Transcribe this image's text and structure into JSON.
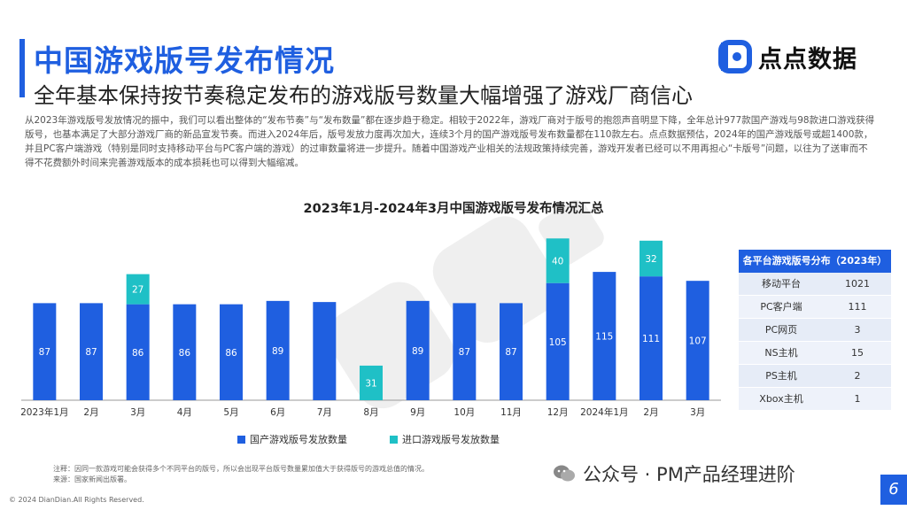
{
  "header": {
    "title": "中国游戏版号发布情况",
    "subtitle": "全年基本保持按节奏稳定发布的游戏版号数量大幅增强了游戏厂商信心"
  },
  "logo": {
    "text": "点点数据"
  },
  "intro_text": "从2023年游戏版号发放情况的振中，我们可以看出整体的“发布节奏”与“发布数量”都在逐步趋于稳定。相较于2022年，游戏厂商对于版号的抱怨声音明显下降，全年总计977款国产游戏与98款进口游戏获得版号，也基本满足了大部分游戏厂商的新品宣发节奏。而进入2024年后，版号发放力度再次加大，连续3个月的国产游戏版号发布数量都在110款左右。点点数据预估，2024年的国产游戏版号或超1400款，并且PC客户端游戏（特别是同时支持移动平台与PC客户端的游戏）的过审数量将进一步提升。随着中国游戏产业相关的法规政策持续完善，游戏开发者已经可以不用再担心“卡版号”问题，以往为了送审而不得不花费额外时间来完善游戏版本的成本损耗也可以得到大幅缩减。",
  "chart_data": {
    "type": "bar",
    "title": "2023年1月-2024年3月中国游戏版号发布情况汇总",
    "categories": [
      "2023年1月",
      "2月",
      "3月",
      "4月",
      "5月",
      "6月",
      "7月",
      "8月",
      "9月",
      "10月",
      "11月",
      "12月",
      "2024年1月",
      "2月",
      "3月"
    ],
    "series": [
      {
        "name": "国产游戏版号发放数量",
        "color": "#1f5fe0",
        "values": [
          87,
          87,
          86,
          86,
          86,
          89,
          88,
          null,
          89,
          87,
          87,
          105,
          115,
          111,
          107
        ],
        "labels": [
          "87",
          "87",
          "86",
          "86",
          "86",
          "89",
          "",
          "",
          "89",
          "87",
          "87",
          "105",
          "115",
          "111",
          "107"
        ]
      },
      {
        "name": "进口游戏版号发放数量",
        "color": "#1fc0c6",
        "values": [
          null,
          null,
          27,
          null,
          null,
          null,
          null,
          31,
          null,
          null,
          null,
          40,
          null,
          32,
          null
        ],
        "labels": [
          "",
          "",
          "27",
          "",
          "",
          "",
          "",
          "31",
          "",
          "",
          "",
          "40",
          "",
          "32",
          ""
        ]
      }
    ],
    "stacked": true,
    "ylim": [
      0,
      150
    ],
    "grid": false,
    "legend": "bottom"
  },
  "side_table": {
    "header": "各平台游戏版号分布（2023年）",
    "rows": [
      {
        "platform": "移动平台",
        "count": "1021"
      },
      {
        "platform": "PC客户端",
        "count": "111"
      },
      {
        "platform": "PC网页",
        "count": "3"
      },
      {
        "platform": "NS主机",
        "count": "15"
      },
      {
        "platform": "PS主机",
        "count": "2"
      },
      {
        "platform": "Xbox主机",
        "count": "1"
      }
    ]
  },
  "notes": {
    "line1": "注释：因同一款游戏可能会获得多个不同平台的版号，所以会出现平台版号数量累加值大于获得版号的游戏总值的情况。",
    "line2": "来源：国家新闻出版署。"
  },
  "footer": {
    "copyright": "© 2024 DianDian.All Rights Reserved.",
    "wechat": "公众号 · PM产品经理进阶",
    "page": "6"
  }
}
